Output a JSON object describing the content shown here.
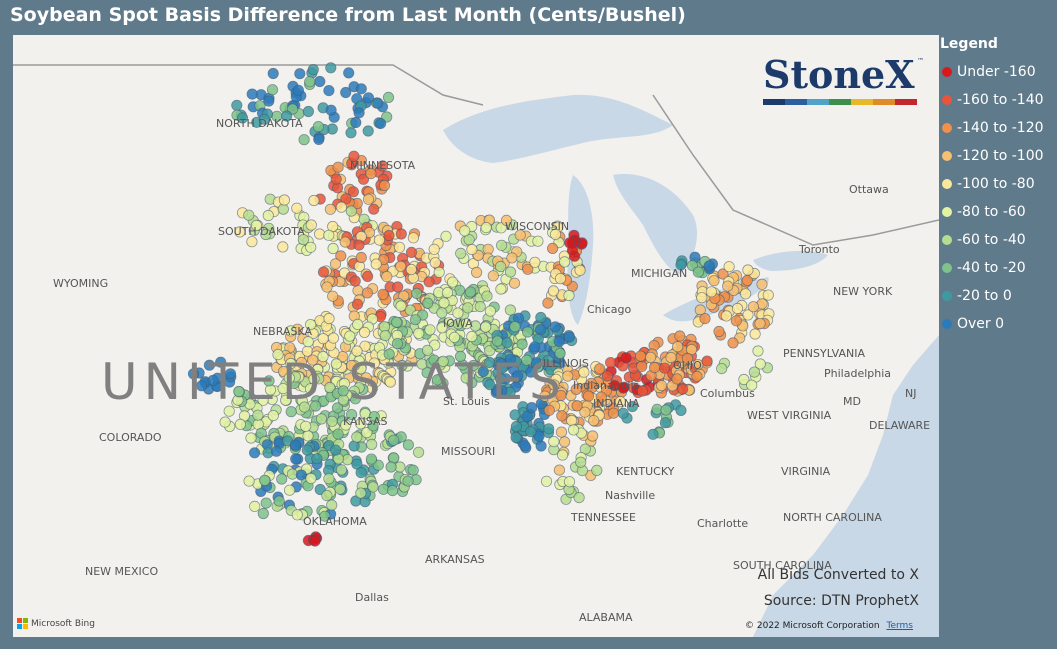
{
  "title": "Soybean Spot Basis Difference from Last Month (Cents/Bushel)",
  "legend": {
    "title": "Legend",
    "items": [
      {
        "label": "Under -160",
        "color": "#d7191c"
      },
      {
        "label": "-160 to -140",
        "color": "#e8553a"
      },
      {
        "label": "-140 to -120",
        "color": "#f0904a"
      },
      {
        "label": "-120 to -100",
        "color": "#f7c070"
      },
      {
        "label": "-100 to -80",
        "color": "#fbe79a"
      },
      {
        "label": "-80 to -60",
        "color": "#e3f2a2"
      },
      {
        "label": "-60 to -40",
        "color": "#b6dd8f"
      },
      {
        "label": "-40 to -20",
        "color": "#7fc38a"
      },
      {
        "label": "-20 to 0",
        "color": "#3f9aa0"
      },
      {
        "label": "Over 0",
        "color": "#2b7bba"
      }
    ]
  },
  "brand": {
    "name": "StoneX",
    "tm": "™",
    "bar_colors": [
      "#1c3b6b",
      "#2b5fa0",
      "#4fa3c7",
      "#3e8f4a",
      "#e6b82a",
      "#e08a2a",
      "#c2262e"
    ]
  },
  "map": {
    "country_label": "UNITED STATES",
    "places": [
      "NORTH DAKOTA",
      "MINNESOTA",
      "SOUTH DAKOTA",
      "WYOMING",
      "NEBRASKA",
      "WISCONSIN",
      "MICHIGAN",
      "Chicago",
      "IOWA",
      "ILLINOIS",
      "INDIANA",
      "OHIO",
      "Columbus",
      "PENNSYLVANIA",
      "Philadelphia",
      "NEW YORK",
      "Toronto",
      "Ottawa",
      "COLORADO",
      "KANSAS",
      "MISSOURI",
      "KENTUCKY",
      "WEST VIRGINIA",
      "VIRGINIA",
      "Nashville",
      "TENNESSEE",
      "NORTH CAROLINA",
      "Charlotte",
      "SOUTH CAROLINA",
      "OKLAHOMA",
      "ARKANSAS",
      "NEW MEXICO",
      "Dallas",
      "ALABAMA",
      "DELAWARE",
      "MD",
      "NJ",
      "Indianapolis",
      "St. Louis"
    ]
  },
  "notes": {
    "converted": "All Bids Converted to X",
    "source": "Source: DTN ProphetX"
  },
  "attribution": {
    "bing": "Microsoft Bing",
    "copyright": "© 2022 Microsoft Corporation",
    "terms": "Terms"
  }
}
